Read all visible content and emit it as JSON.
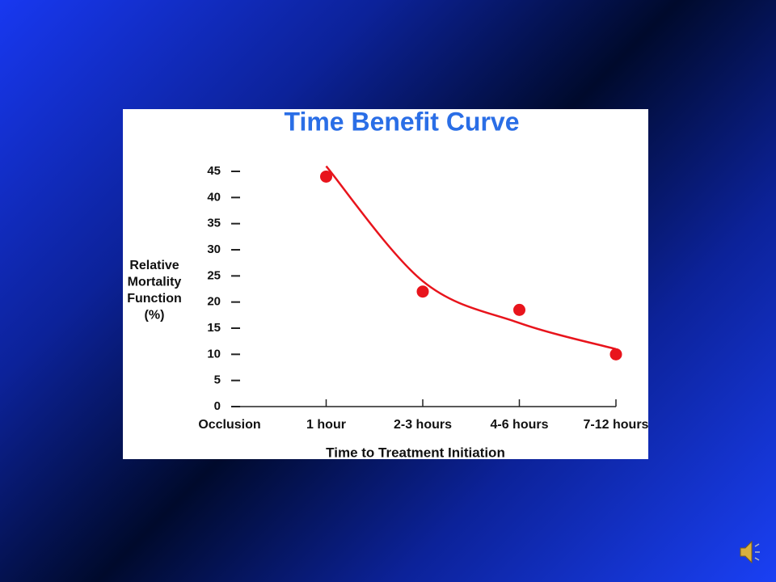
{
  "chart_data": {
    "type": "scatter",
    "title": "Time Benefit Curve",
    "ylabel": [
      "Relative",
      "Mortality",
      "Function",
      "(%)"
    ],
    "xlabel": "Time to Treatment Initiation",
    "categories": [
      "Occlusion",
      "1 hour",
      "2-3 hours",
      "4-6 hours",
      "7-12 hours"
    ],
    "values": [
      null,
      44,
      22,
      18.5,
      10
    ],
    "curve": [
      null,
      46,
      24,
      16,
      11
    ],
    "color": "#e8141c",
    "ylim": [
      0,
      45
    ],
    "yticks": [
      0,
      5,
      10,
      15,
      20,
      25,
      30,
      35,
      40,
      45
    ]
  }
}
